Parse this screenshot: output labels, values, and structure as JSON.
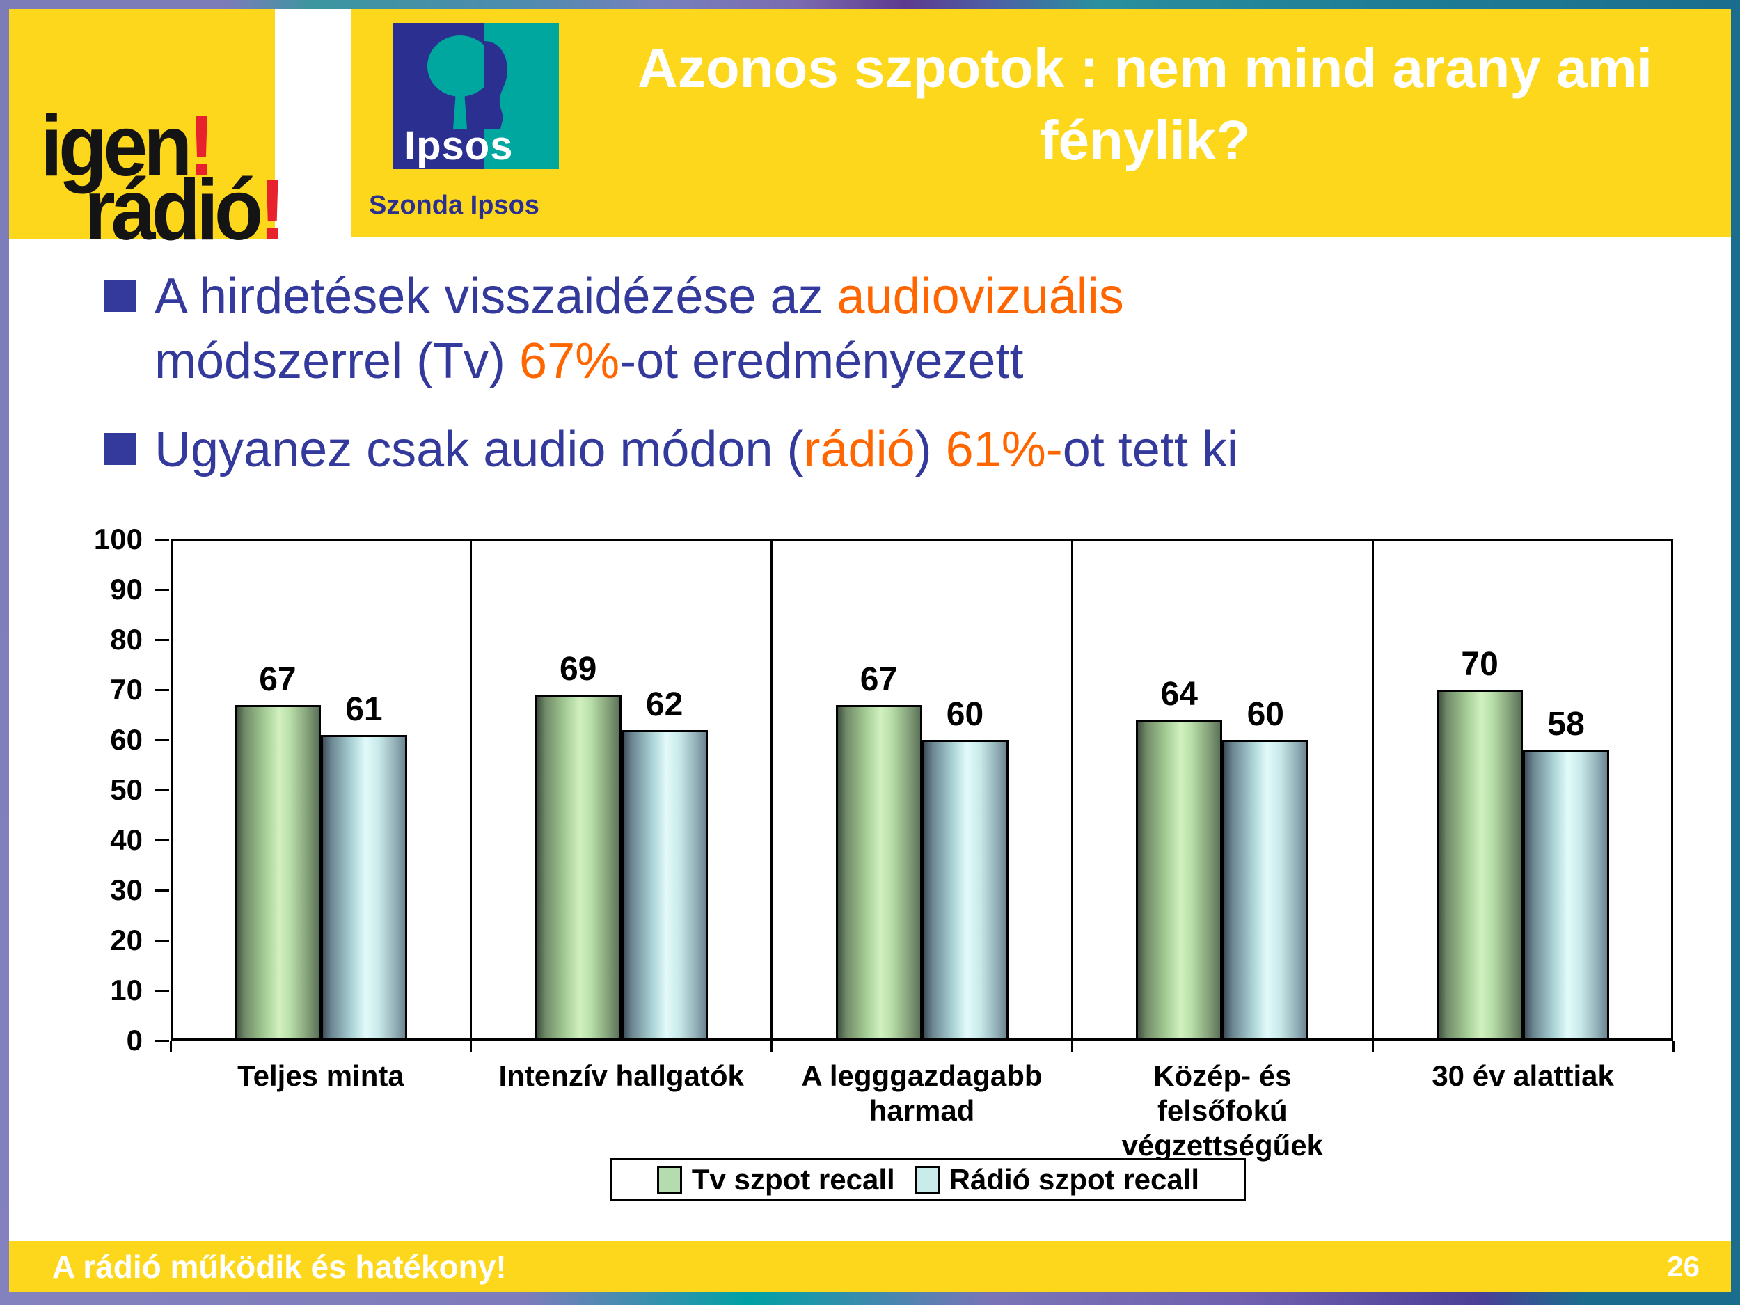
{
  "logo": {
    "word1": "igen",
    "bang1": "!",
    "word2": "rádió",
    "bang2": "!"
  },
  "ipsos": {
    "logo_text": "Ipsos",
    "subtitle": "Szonda Ipsos"
  },
  "header": {
    "title_line1": "Azonos szpotok : nem mind arany ami",
    "title_line2": "fénylik?"
  },
  "bullets": [
    {
      "lines": [
        [
          {
            "text": "A hirdetések visszaidézése az ",
            "color": "blue"
          },
          {
            "text": "audiovizuális",
            "color": "orange"
          }
        ],
        [
          {
            "text": "módszerrel (Tv) ",
            "color": "blue"
          },
          {
            "text": "67%",
            "color": "orange"
          },
          {
            "text": "-ot eredményezett",
            "color": "blue"
          }
        ]
      ]
    },
    {
      "lines": [
        [
          {
            "text": "Ugyanez csak audio módon (",
            "color": "blue"
          },
          {
            "text": "rádió",
            "color": "orange"
          },
          {
            "text": ") ",
            "color": "blue"
          },
          {
            "text": "61%-",
            "color": "orange"
          },
          {
            "text": "ot tett ki",
            "color": "blue"
          }
        ]
      ]
    }
  ],
  "chart_data": {
    "type": "bar",
    "categories": [
      "Teljes minta",
      "Intenzív hallgatók",
      "A legggazdagabb\nharmad",
      "Közép- és\nfelsőfokú\nvégzettségűek",
      "30 év alattiak"
    ],
    "series": [
      {
        "name": "Tv szpot recall",
        "values": [
          67,
          69,
          67,
          64,
          70
        ]
      },
      {
        "name": "Rádió szpot recall",
        "values": [
          61,
          62,
          60,
          60,
          58
        ]
      }
    ],
    "title": "",
    "xlabel": "",
    "ylabel": "",
    "ylim": [
      0,
      100
    ],
    "ytick_step": 10,
    "grid": "vertical-category-dividers",
    "legend_position": "bottom",
    "value_labels": true
  },
  "footer": {
    "text": "A rádió működik és hatékony!",
    "page": "26"
  },
  "colors": {
    "accent_yellow": "#FDD71C",
    "text_blue": "#333A9B",
    "accent_orange": "#FF6600",
    "logo_red": "#E8222D",
    "ipsos_blue": "#2B2F90",
    "ipsos_teal": "#00A79E",
    "border_purple": "#7B7CB8",
    "border_teal_dark": "#1B6D8E",
    "tv_swatch": "#B5DCAE",
    "radio_swatch": "#C9ECEA"
  }
}
